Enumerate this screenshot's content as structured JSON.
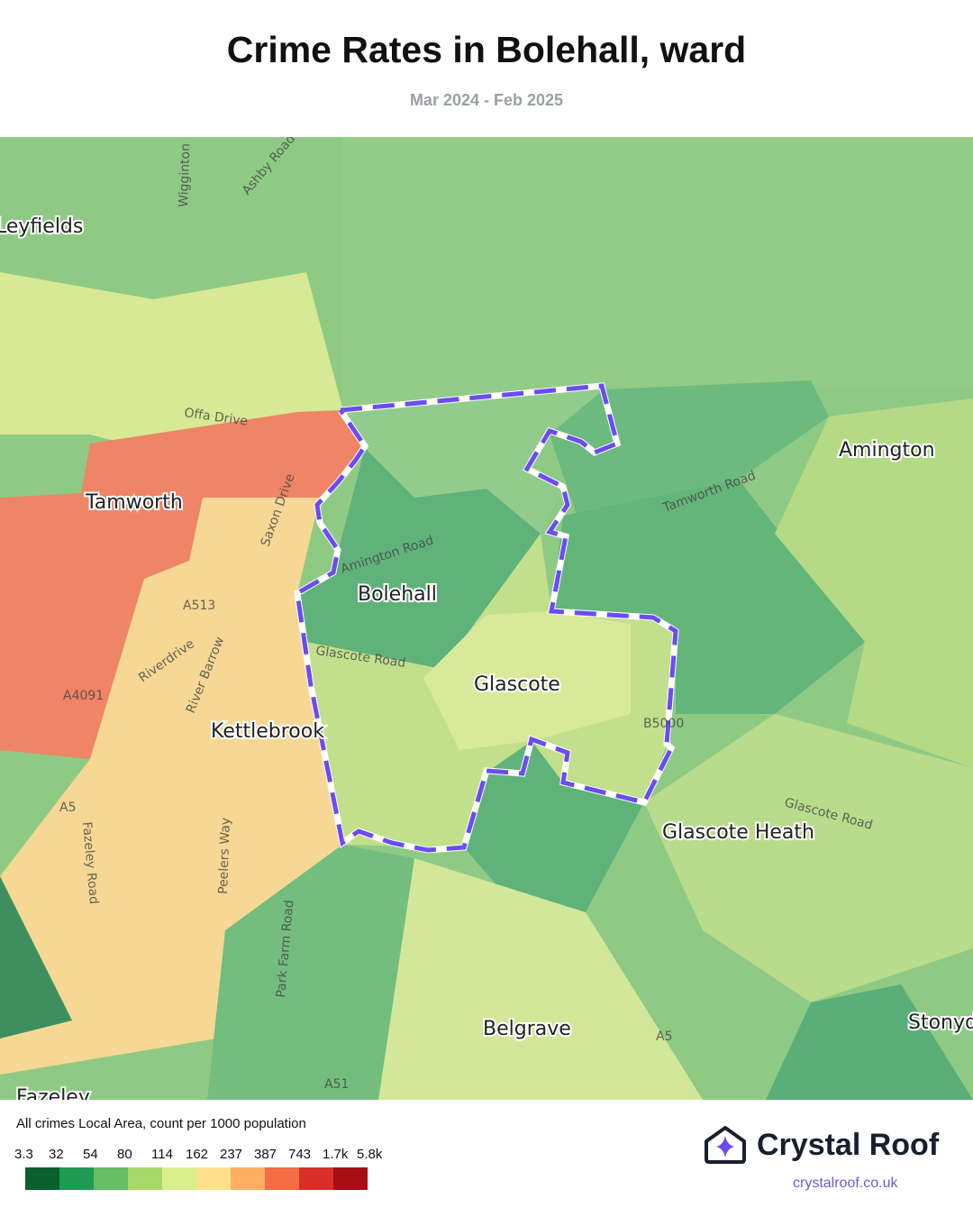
{
  "title": "Crime Rates in Bolehall, ward",
  "subtitle": "Mar 2024 - Feb 2025",
  "map": {
    "places": [
      "Leyfields",
      "Tamworth",
      "Bolehall",
      "Glascote",
      "Kettlebrook",
      "Amington",
      "Glascote Heath",
      "Belgrave",
      "Stonyd",
      "Fazeley"
    ],
    "roads": [
      "Offa Drive",
      "Amington Road",
      "Glascote Road",
      "Tamworth Road",
      "Saxon Drive",
      "River Barrow",
      "Riverdrive",
      "Peelers Way",
      "Fazeley Road",
      "Park Farm Road",
      "Glascote Road",
      "Ashby Road",
      "Wigginton",
      "A513",
      "A4091",
      "A5",
      "A51",
      "B5000",
      "A5"
    ],
    "highlight_ward": "Bolehall",
    "boundary_color": "#6c4cf0"
  },
  "legend": {
    "title": "All crimes Local Area, count per 1000 population",
    "ticks": [
      "3.3",
      "32",
      "54",
      "80",
      "114",
      "162",
      "237",
      "387",
      "743",
      "1.7k",
      "5.8k"
    ],
    "colors": [
      "#0b5e2e",
      "#1f9a55",
      "#66bd63",
      "#a6d96a",
      "#d9ef8b",
      "#fee08b",
      "#fdae61",
      "#f46d43",
      "#d73027",
      "#a50f15"
    ]
  },
  "brand": {
    "name": "Crystal Roof",
    "url": "crystalroof.co.uk"
  }
}
